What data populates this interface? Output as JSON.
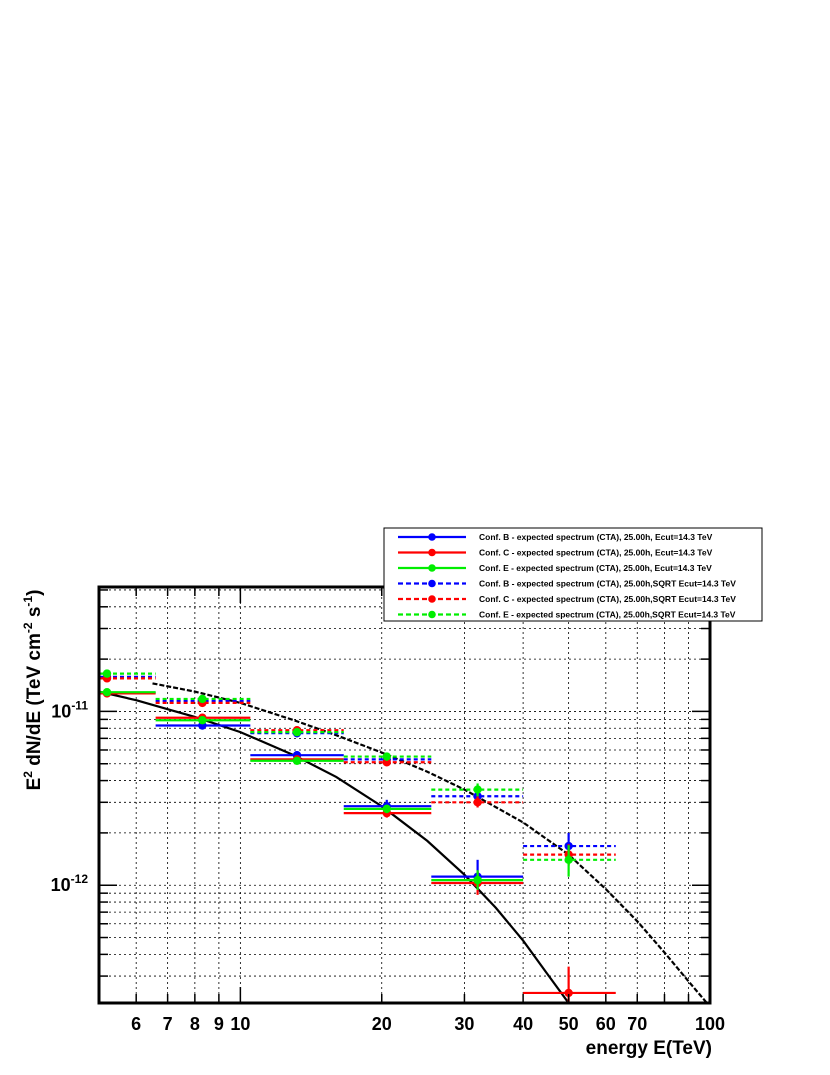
{
  "chart_data": {
    "type": "scatter",
    "title": "",
    "xlabel": "energy E(TeV)",
    "ylabel_parts": [
      "E",
      "2",
      " dN/dE (TeV cm",
      "-2",
      " s",
      "-1",
      ")"
    ],
    "x_scale": "log",
    "y_scale": "log",
    "xlim": [
      5.0,
      100
    ],
    "ylim": [
      2.1e-13,
      5.2e-11
    ],
    "x_ticks": [
      {
        "value": 6,
        "label": "6"
      },
      {
        "value": 7,
        "label": "7"
      },
      {
        "value": 8,
        "label": "8"
      },
      {
        "value": 9,
        "label": "9"
      },
      {
        "value": 10,
        "label": "10"
      },
      {
        "value": 20,
        "label": "20"
      },
      {
        "value": 30,
        "label": "30"
      },
      {
        "value": 40,
        "label": "40"
      },
      {
        "value": 50,
        "label": "50"
      },
      {
        "value": 60,
        "label": "60"
      },
      {
        "value": 70,
        "label": "70"
      },
      {
        "value": 100,
        "label": "100"
      }
    ],
    "y_ticks": [
      {
        "value": 1e-11,
        "mantissa": "10",
        "exponent": "-11"
      },
      {
        "value": 1e-12,
        "mantissa": "10",
        "exponent": "-12"
      }
    ],
    "grid": true,
    "legend_position": "top-right",
    "curves": [
      {
        "name_key": "with_cutoff",
        "style": "solid",
        "color": "#000000",
        "x": [
          5.0,
          6,
          7,
          8,
          10,
          13,
          16,
          20,
          25,
          30,
          35,
          40,
          45,
          50,
          53
        ],
        "y": [
          1.3e-11,
          1.16e-11,
          1.03e-11,
          9.3e-12,
          7.6e-12,
          5.6e-12,
          4.2e-12,
          2.85e-12,
          1.8e-12,
          1.15e-12,
          7.4e-13,
          4.8e-13,
          3.1e-13,
          2.1e-13,
          1.6e-13
        ]
      },
      {
        "name_key": "sqrt_cutoff",
        "style": "dashed",
        "color": "#000000",
        "x": [
          6.5,
          8,
          10,
          13,
          16,
          20,
          25,
          30,
          40,
          50,
          60,
          70,
          80,
          90,
          100
        ],
        "y": [
          1.45e-11,
          1.3e-11,
          1.12e-11,
          8.9e-12,
          7.3e-12,
          5.8e-12,
          4.5e-12,
          3.55e-12,
          2.3e-12,
          1.5e-12,
          9.5e-13,
          6.2e-13,
          4.1e-13,
          2.8e-13,
          2e-13
        ]
      }
    ],
    "series": [
      {
        "name": "Conf. B - expected spectrum (CTA), 25.00h, Ecut=14.3 TeV",
        "color": "#0000ff",
        "style": "solid",
        "points": [
          {
            "x": 5.2,
            "xlo": 5.0,
            "xhi": 6.6,
            "y": 1.28e-11,
            "ylo": 1.24e-11,
            "yhi": 1.32e-11
          },
          {
            "x": 8.3,
            "xlo": 6.6,
            "xhi": 10.5,
            "y": 8.3e-12,
            "ylo": 8e-12,
            "yhi": 8.6e-12
          },
          {
            "x": 13.2,
            "xlo": 10.5,
            "xhi": 16.6,
            "y": 5.6e-12,
            "ylo": 5.3e-12,
            "yhi": 5.9e-12
          },
          {
            "x": 20.5,
            "xlo": 16.6,
            "xhi": 25.5,
            "y": 2.85e-12,
            "ylo": 2.65e-12,
            "yhi": 3.1e-12
          },
          {
            "x": 32,
            "xlo": 25.5,
            "xhi": 40,
            "y": 1.12e-12,
            "ylo": 9.2e-13,
            "yhi": 1.4e-12
          }
        ]
      },
      {
        "name": "Conf. C - expected spectrum (CTA), 25.00h, Ecut=14.3 TeV",
        "color": "#ff0000",
        "style": "solid",
        "points": [
          {
            "x": 5.2,
            "xlo": 5.0,
            "xhi": 6.6,
            "y": 1.27e-11,
            "ylo": 1.23e-11,
            "yhi": 1.31e-11
          },
          {
            "x": 8.3,
            "xlo": 6.6,
            "xhi": 10.5,
            "y": 9.2e-12,
            "ylo": 8.9e-12,
            "yhi": 9.5e-12
          },
          {
            "x": 13.2,
            "xlo": 10.5,
            "xhi": 16.6,
            "y": 5.3e-12,
            "ylo": 5.1e-12,
            "yhi": 5.5e-12
          },
          {
            "x": 20.5,
            "xlo": 16.6,
            "xhi": 25.5,
            "y": 2.6e-12,
            "ylo": 2.45e-12,
            "yhi": 2.75e-12
          },
          {
            "x": 32,
            "xlo": 25.5,
            "xhi": 40,
            "y": 1.03e-12,
            "ylo": 8.8e-13,
            "yhi": 1.2e-12
          },
          {
            "x": 50,
            "xlo": 40,
            "xhi": 63,
            "y": 2.4e-13,
            "ylo": 2.1e-13,
            "yhi": 3.4e-13
          }
        ]
      },
      {
        "name": "Conf. E - expected spectrum (CTA), 25.00h, Ecut=14.3 TeV",
        "color": "#00ee00",
        "style": "solid",
        "points": [
          {
            "x": 5.2,
            "xlo": 5.0,
            "xhi": 6.6,
            "y": 1.29e-11,
            "ylo": 1.25e-11,
            "yhi": 1.33e-11
          },
          {
            "x": 8.3,
            "xlo": 6.6,
            "xhi": 10.5,
            "y": 8.9e-12,
            "ylo": 8.6e-12,
            "yhi": 9.2e-12
          },
          {
            "x": 13.2,
            "xlo": 10.5,
            "xhi": 16.6,
            "y": 5.2e-12,
            "ylo": 5e-12,
            "yhi": 5.4e-12
          },
          {
            "x": 20.5,
            "xlo": 16.6,
            "xhi": 25.5,
            "y": 2.75e-12,
            "ylo": 2.6e-12,
            "yhi": 2.9e-12
          },
          {
            "x": 32,
            "xlo": 25.5,
            "xhi": 40,
            "y": 1.07e-12,
            "ylo": 9.4e-13,
            "yhi": 1.22e-12
          }
        ]
      },
      {
        "name": "Conf. B - expected spectrum (CTA), 25.00h,SQRT Ecut=14.3 TeV",
        "color": "#0000ff",
        "style": "dashed",
        "points": [
          {
            "x": 5.2,
            "xlo": 5.0,
            "xhi": 6.6,
            "y": 1.58e-11,
            "ylo": 1.54e-11,
            "yhi": 1.62e-11
          },
          {
            "x": 8.3,
            "xlo": 6.6,
            "xhi": 10.5,
            "y": 1.15e-11,
            "ylo": 1.12e-11,
            "yhi": 1.18e-11
          },
          {
            "x": 13.2,
            "xlo": 10.5,
            "xhi": 16.6,
            "y": 7.5e-12,
            "ylo": 7.1e-12,
            "yhi": 7.9e-12
          },
          {
            "x": 20.5,
            "xlo": 16.6,
            "xhi": 25.5,
            "y": 5.3e-12,
            "ylo": 5e-12,
            "yhi": 5.6e-12
          },
          {
            "x": 32,
            "xlo": 25.5,
            "xhi": 40,
            "y": 3.25e-12,
            "ylo": 2.95e-12,
            "yhi": 3.6e-12
          },
          {
            "x": 50,
            "xlo": 40,
            "xhi": 63,
            "y": 1.68e-12,
            "ylo": 1.4e-12,
            "yhi": 2e-12
          }
        ]
      },
      {
        "name": "Conf. C - expected spectrum (CTA), 25.00h,SQRT Ecut=14.3 TeV",
        "color": "#ff0000",
        "style": "dashed",
        "points": [
          {
            "x": 5.2,
            "xlo": 5.0,
            "xhi": 6.6,
            "y": 1.55e-11,
            "ylo": 1.51e-11,
            "yhi": 1.59e-11
          },
          {
            "x": 8.3,
            "xlo": 6.6,
            "xhi": 10.5,
            "y": 1.12e-11,
            "ylo": 1.09e-11,
            "yhi": 1.15e-11
          },
          {
            "x": 13.2,
            "xlo": 10.5,
            "xhi": 16.6,
            "y": 7.8e-12,
            "ylo": 7.5e-12,
            "yhi": 8.1e-12
          },
          {
            "x": 20.5,
            "xlo": 16.6,
            "xhi": 25.5,
            "y": 5.1e-12,
            "ylo": 4.9e-12,
            "yhi": 5.3e-12
          },
          {
            "x": 32,
            "xlo": 25.5,
            "xhi": 40,
            "y": 3e-12,
            "ylo": 2.8e-12,
            "yhi": 3.25e-12
          },
          {
            "x": 50,
            "xlo": 40,
            "xhi": 63,
            "y": 1.5e-12,
            "ylo": 1.3e-12,
            "yhi": 1.72e-12
          }
        ]
      },
      {
        "name": "Conf. E - expected spectrum (CTA), 25.00h,SQRT Ecut=14.3 TeV",
        "color": "#00ee00",
        "style": "dashed",
        "points": [
          {
            "x": 5.2,
            "xlo": 5.0,
            "xhi": 6.6,
            "y": 1.65e-11,
            "ylo": 1.61e-11,
            "yhi": 1.69e-11
          },
          {
            "x": 8.3,
            "xlo": 6.6,
            "xhi": 10.5,
            "y": 1.18e-11,
            "ylo": 1.15e-11,
            "yhi": 1.21e-11
          },
          {
            "x": 13.2,
            "xlo": 10.5,
            "xhi": 16.6,
            "y": 7.6e-12,
            "ylo": 7.3e-12,
            "yhi": 7.9e-12
          },
          {
            "x": 20.5,
            "xlo": 16.6,
            "xhi": 25.5,
            "y": 5.5e-12,
            "ylo": 5.2e-12,
            "yhi": 5.8e-12
          },
          {
            "x": 32,
            "xlo": 25.5,
            "xhi": 40,
            "y": 3.55e-12,
            "ylo": 3.25e-12,
            "yhi": 3.85e-12
          },
          {
            "x": 50,
            "xlo": 40,
            "xhi": 63,
            "y": 1.4e-12,
            "ylo": 1.12e-12,
            "yhi": 1.7e-12
          }
        ]
      }
    ]
  }
}
